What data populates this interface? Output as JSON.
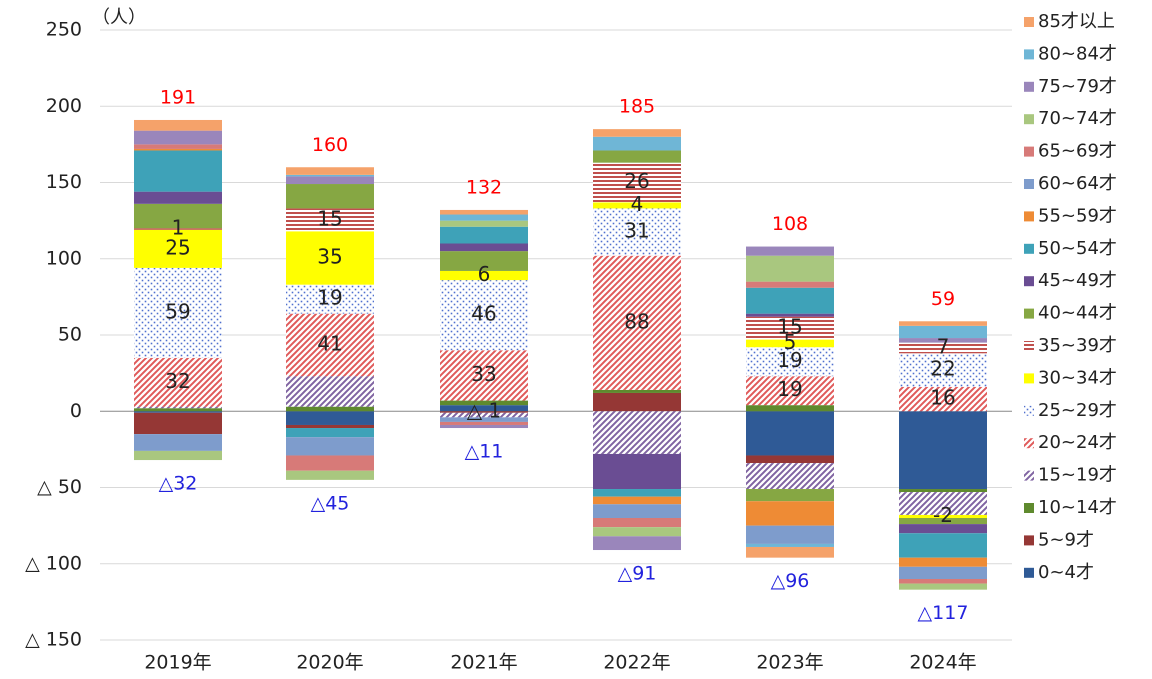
{
  "chart_data": {
    "type": "stacked_bar",
    "unit_label": "（人）",
    "categories": [
      "2019年",
      "2020年",
      "2021年",
      "2022年",
      "2023年",
      "2024年"
    ],
    "ylim": [
      -150,
      250
    ],
    "yticks": [
      {
        "value": -150,
        "label": "△ 150"
      },
      {
        "value": -100,
        "label": "△ 100"
      },
      {
        "value": -50,
        "label": "△ 50"
      },
      0,
      50,
      100,
      150,
      200,
      250
    ],
    "grid": true,
    "legend": "right",
    "series": [
      {
        "name": "0~4才",
        "color": "#2f5a96",
        "pattern": "solid",
        "values": [
          -1,
          -9,
          4,
          0,
          -29,
          -51
        ]
      },
      {
        "name": "5~9才",
        "color": "#953735",
        "pattern": "solid",
        "values": [
          -14,
          -2,
          -1,
          12,
          -5,
          0
        ],
        "value_labels": [
          null,
          null,
          "△ 1",
          null,
          null,
          null
        ]
      },
      {
        "name": "10~14才",
        "color": "#5f8a2e",
        "pattern": "solid",
        "values": [
          2,
          3,
          3,
          2,
          4,
          -2
        ]
      },
      {
        "name": "15~19才",
        "color": "#8064a2",
        "pattern": "diagonal",
        "values": [
          1,
          20,
          -3,
          -28,
          -17,
          -15
        ]
      },
      {
        "name": "20~24才",
        "color": "#e05a5a",
        "pattern": "diagonal",
        "values": [
          32,
          41,
          33,
          88,
          19,
          16
        ],
        "value_labels": [
          "32",
          "41",
          "33",
          "88",
          "19",
          "16"
        ]
      },
      {
        "name": "25~29才",
        "color": "#4f6fcf",
        "pattern": "dots",
        "values": [
          59,
          19,
          46,
          31,
          19,
          22
        ],
        "value_labels": [
          "59",
          "19",
          "46",
          "31",
          "19",
          "22"
        ]
      },
      {
        "name": "30~34才",
        "color": "#ffff00",
        "pattern": "solid",
        "values": [
          25,
          35,
          6,
          4,
          5,
          -2
        ],
        "value_labels": [
          "25",
          "35",
          "6",
          "4",
          "5",
          "-2"
        ]
      },
      {
        "name": "35~39才",
        "color": "#c0504d",
        "pattern": "horizontal",
        "values": [
          1,
          15,
          0,
          26,
          15,
          7
        ],
        "value_labels": [
          "1",
          "15",
          null,
          "26",
          "15",
          "7"
        ]
      },
      {
        "name": "40~44才",
        "color": "#86a743",
        "pattern": "solid",
        "values": [
          16,
          16,
          13,
          8,
          -8,
          -4
        ]
      },
      {
        "name": "45~49才",
        "color": "#6a4d93",
        "pattern": "solid",
        "values": [
          8,
          0,
          5,
          -23,
          2,
          -6
        ]
      },
      {
        "name": "50~54才",
        "color": "#3ea2b8",
        "pattern": "solid",
        "values": [
          27,
          -6,
          11,
          -5,
          17,
          -16
        ]
      },
      {
        "name": "55~59才",
        "color": "#ee8b35",
        "pattern": "solid",
        "values": [
          1,
          0,
          0,
          -5,
          -16,
          -6
        ]
      },
      {
        "name": "60~64才",
        "color": "#7e9ccc",
        "pattern": "solid",
        "values": [
          -11,
          -12,
          -3,
          -9,
          -12,
          -8
        ]
      },
      {
        "name": "65~69才",
        "color": "#d77a78",
        "pattern": "solid",
        "values": [
          3,
          -10,
          -2,
          -6,
          4,
          -3
        ]
      },
      {
        "name": "70~74才",
        "color": "#a9c77f",
        "pattern": "solid",
        "values": [
          -6,
          -6,
          4,
          -6,
          17,
          -4
        ]
      },
      {
        "name": "75~79才",
        "color": "#9a86bb",
        "pattern": "solid",
        "values": [
          9,
          5,
          -2,
          -9,
          6,
          3
        ]
      },
      {
        "name": "80~84才",
        "color": "#6fb6d6",
        "pattern": "solid",
        "values": [
          0,
          1,
          4,
          9,
          -2,
          8
        ]
      },
      {
        "name": "85才以上",
        "color": "#f5a26a",
        "pattern": "solid",
        "values": [
          7,
          5,
          3,
          5,
          -7,
          3
        ]
      }
    ],
    "positive_totals": [
      191,
      160,
      132,
      185,
      108,
      59
    ],
    "positive_total_color": "#ff0000",
    "negative_totals": [
      -32,
      -45,
      -11,
      -91,
      -96,
      -117
    ],
    "negative_total_labels": [
      "△32",
      "△45",
      "△11",
      "△91",
      "△96",
      "△117"
    ],
    "negative_total_color": "#2222dd"
  }
}
